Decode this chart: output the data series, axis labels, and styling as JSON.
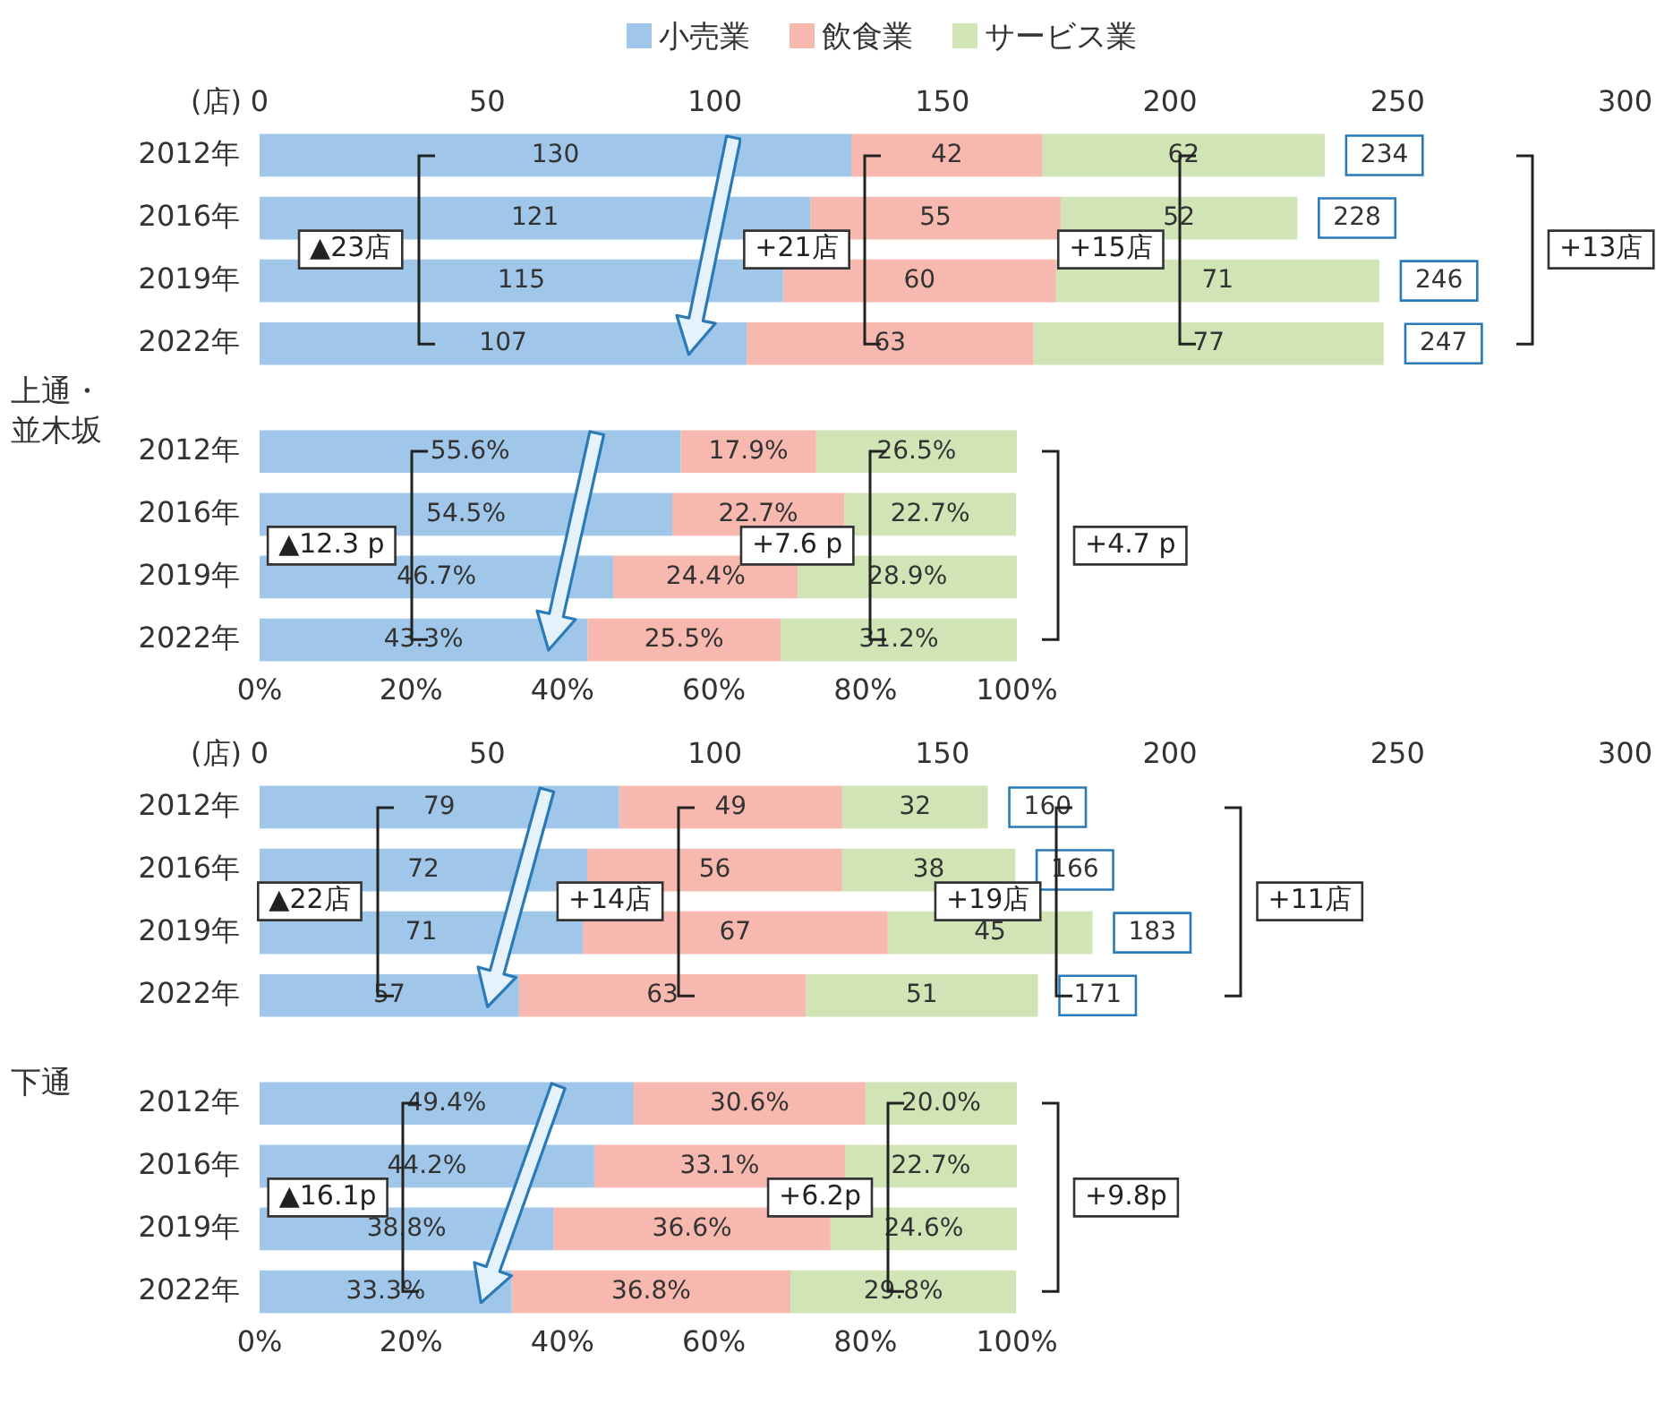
{
  "chart_data": [
    {
      "type": "bar",
      "orientation": "horizontal",
      "stacked": true,
      "legend": "top",
      "data_labels": true,
      "x2label": "(店)",
      "ylabel": "上通・並木坂",
      "categories": [
        "2012年",
        "2016年",
        "2019年",
        "2022年"
      ],
      "series": [
        {
          "name": "小売業",
          "color": "#a0c7ea",
          "values": [
            130,
            121,
            115,
            107
          ]
        },
        {
          "name": "飲食業",
          "color": "#f7b9af",
          "values": [
            42,
            55,
            60,
            63
          ]
        },
        {
          "name": "サービス業",
          "color": "#d0e4b6",
          "values": [
            62,
            52,
            71,
            77
          ]
        }
      ],
      "totals": [
        "234",
        "228",
        "246",
        "247"
      ],
      "x2lim": [
        0,
        300
      ],
      "x2ticks": [
        0,
        50,
        100,
        150,
        200,
        250,
        300
      ],
      "annotations": [
        {
          "text": "▲23店",
          "x": 20,
          "y": "2016年"
        },
        {
          "text": "+21店",
          "x": 118,
          "y": "2016年"
        },
        {
          "text": "+15店",
          "x": 187,
          "y": "2016年"
        },
        "+13店"
      ]
    },
    {
      "type": "bar",
      "orientation": "horizontal",
      "stacked": true,
      "categories": [
        "2012年",
        "2016年",
        "2019年",
        "2022年"
      ],
      "series": [
        {
          "color": "#a0c7ea",
          "values": [
            55.6,
            54.5,
            46.7,
            43.3
          ],
          "value_labels": [
            "55.6%",
            "54.5%",
            "46.7%",
            "43.3%"
          ]
        },
        {
          "color": "#f7b9af",
          "values": [
            17.9,
            22.7,
            24.4,
            25.5
          ],
          "value_labels": [
            "17.9%",
            "22.7%",
            "24.4%",
            "25.5%"
          ]
        },
        {
          "color": "#d0e4b6",
          "values": [
            26.5,
            22.7,
            28.9,
            31.2
          ],
          "value_labels": [
            "26.5%",
            "22.7%",
            "28.9%",
            "31.2%"
          ]
        }
      ],
      "xlim": [
        0,
        100
      ],
      "xticks": [
        {
          "value": 0,
          "label": "0%"
        },
        {
          "value": 20,
          "label": "20%"
        },
        {
          "value": 40,
          "label": "40%"
        },
        {
          "value": 60,
          "label": "60%"
        },
        {
          "value": 80,
          "label": "80%"
        },
        {
          "value": 100,
          "label": "100%"
        }
      ],
      "annotations": [
        {
          "text": "▲12.3 p",
          "x": 9.5,
          "y": "2016年"
        },
        {
          "text": "+7.6 p",
          "x": 71,
          "y": "2016年"
        },
        "+4.7 p"
      ]
    },
    {
      "type": "bar",
      "orientation": "horizontal",
      "stacked": true,
      "data_labels": true,
      "x2label": "(店)",
      "ylabel": "下通",
      "categories": [
        "2012年",
        "2016年",
        "2019年",
        "2022年"
      ],
      "series": [
        {
          "color": "#a0c7ea",
          "values": [
            79,
            72,
            71,
            57
          ]
        },
        {
          "color": "#f7b9af",
          "values": [
            49,
            56,
            67,
            63
          ]
        },
        {
          "color": "#d0e4b6",
          "values": [
            32,
            38,
            45,
            51
          ]
        }
      ],
      "totals": [
        "160",
        "166",
        "183",
        "171"
      ],
      "x2lim": [
        0,
        300
      ],
      "x2ticks": [
        0,
        50,
        100,
        150,
        200,
        250,
        300
      ],
      "annotations": [
        {
          "text": "▲22店",
          "x": 11,
          "y": "2016年"
        },
        {
          "text": "+14店",
          "x": 77,
          "y": "2016年"
        },
        {
          "text": "+19店",
          "x": 160,
          "y": "2016年"
        },
        "+11店"
      ]
    },
    {
      "type": "bar",
      "orientation": "horizontal",
      "stacked": true,
      "categories": [
        "2012年",
        "2016年",
        "2019年",
        "2022年"
      ],
      "series": [
        {
          "color": "#a0c7ea",
          "values": [
            49.4,
            44.2,
            38.8,
            33.3
          ],
          "value_labels": [
            "49.4%",
            "44.2%",
            "38.8%",
            "33.3%"
          ]
        },
        {
          "color": "#f7b9af",
          "values": [
            30.6,
            33.1,
            36.6,
            36.8
          ],
          "value_labels": [
            "30.6%",
            "33.1%",
            "36.6%",
            "36.8%"
          ]
        },
        {
          "color": "#d0e4b6",
          "values": [
            20.0,
            22.7,
            24.6,
            29.8
          ],
          "value_labels": [
            "20.0%",
            "22.7%",
            "24.6%",
            "29.8%"
          ]
        }
      ],
      "xlim": [
        0,
        100
      ],
      "xticks": [
        {
          "value": 0,
          "label": "0%"
        },
        {
          "value": 20,
          "label": "20%"
        },
        {
          "value": 40,
          "label": "40%"
        },
        {
          "value": 60,
          "label": "60%"
        },
        {
          "value": 80,
          "label": "80%"
        },
        {
          "value": 100,
          "label": "100%"
        }
      ],
      "annotations": [
        {
          "text": "▲16.1p",
          "x": 9,
          "y": "2016年"
        },
        {
          "text": "+6.2p",
          "x": 74,
          "y": "2016年"
        },
        "+9.8p"
      ]
    }
  ]
}
